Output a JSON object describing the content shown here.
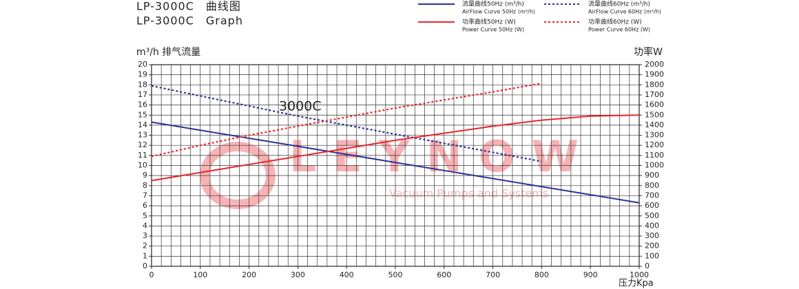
{
  "chart_data": {
    "type": "line",
    "title": "LP-3000C　曲线图",
    "subtitle": "LP-3000C　Graph",
    "y_label": "m³/h 排气流量",
    "y2_label": "功率W",
    "x_label": "压力Kpa",
    "annotation": "3000C",
    "watermark": "LEYNOW",
    "watermark_sub": "Vacuum Pumps and Systems",
    "xlim": [
      0,
      1000
    ],
    "xticks": [
      0,
      100,
      200,
      300,
      400,
      500,
      600,
      700,
      800,
      900,
      1000
    ],
    "xgrid": [
      0,
      20,
      40,
      60,
      80,
      100,
      120,
      140,
      160,
      180,
      200,
      220,
      240,
      260,
      280,
      300,
      320,
      340,
      360,
      380,
      400,
      420,
      440,
      460,
      480,
      500,
      520,
      540,
      560,
      580,
      600,
      620,
      640,
      660,
      680,
      700,
      720,
      740,
      760,
      780,
      800,
      820,
      840,
      860,
      880,
      900,
      920,
      940,
      960,
      980,
      1000
    ],
    "ylim": [
      0,
      20
    ],
    "yticks": [
      0,
      1,
      2,
      3,
      4,
      5,
      6,
      7,
      8,
      9,
      10,
      11,
      12,
      13,
      14,
      15,
      16,
      17,
      18,
      19,
      20
    ],
    "y2lim": [
      0,
      2000
    ],
    "y2ticks": [
      0,
      100,
      200,
      300,
      400,
      500,
      600,
      700,
      800,
      900,
      1000,
      1100,
      1200,
      1300,
      1400,
      1500,
      1600,
      1700,
      1800,
      1900,
      2000
    ],
    "grid": true,
    "series": [
      {
        "name": "流量曲线50Hz (m³/h)",
        "name_en": "AirFlow Curve 50Hz (m³/h)",
        "color": "#2e3192",
        "dash": false,
        "x": [
          0,
          100,
          200,
          300,
          400,
          500,
          600,
          700,
          800,
          900,
          1000
        ],
        "values": [
          14.3,
          13.5,
          12.7,
          11.9,
          11.1,
          10.3,
          9.5,
          8.7,
          7.9,
          7.1,
          6.3
        ]
      },
      {
        "name": "流量曲线60Hz (m³/h)",
        "name_en": "AirFlow Curve 60Hz (m³/h)",
        "color": "#2e3192",
        "dash": true,
        "x": [
          0,
          100,
          200,
          300,
          400,
          500,
          600,
          700,
          800
        ],
        "values": [
          17.9,
          16.9,
          15.9,
          14.9,
          14.0,
          13.1,
          12.2,
          11.3,
          10.4
        ]
      },
      {
        "name": "功率曲线50Hz (W)",
        "name_en": "Power Curve 50Hz (W)",
        "color": "#e8262b",
        "dash": false,
        "axis": "y2",
        "x": [
          0,
          100,
          200,
          300,
          400,
          500,
          600,
          700,
          800,
          900,
          1000
        ],
        "values": [
          850,
          930,
          1010,
          1090,
          1170,
          1250,
          1320,
          1390,
          1450,
          1490,
          1500
        ]
      },
      {
        "name": "功率曲线60Hz (W)",
        "name_en": "Power Curve 60Hz (W)",
        "color": "#e8262b",
        "dash": true,
        "axis": "y2",
        "x": [
          0,
          100,
          200,
          300,
          400,
          500,
          600,
          700,
          800
        ],
        "values": [
          1090,
          1200,
          1300,
          1390,
          1480,
          1570,
          1650,
          1730,
          1815
        ]
      }
    ]
  }
}
